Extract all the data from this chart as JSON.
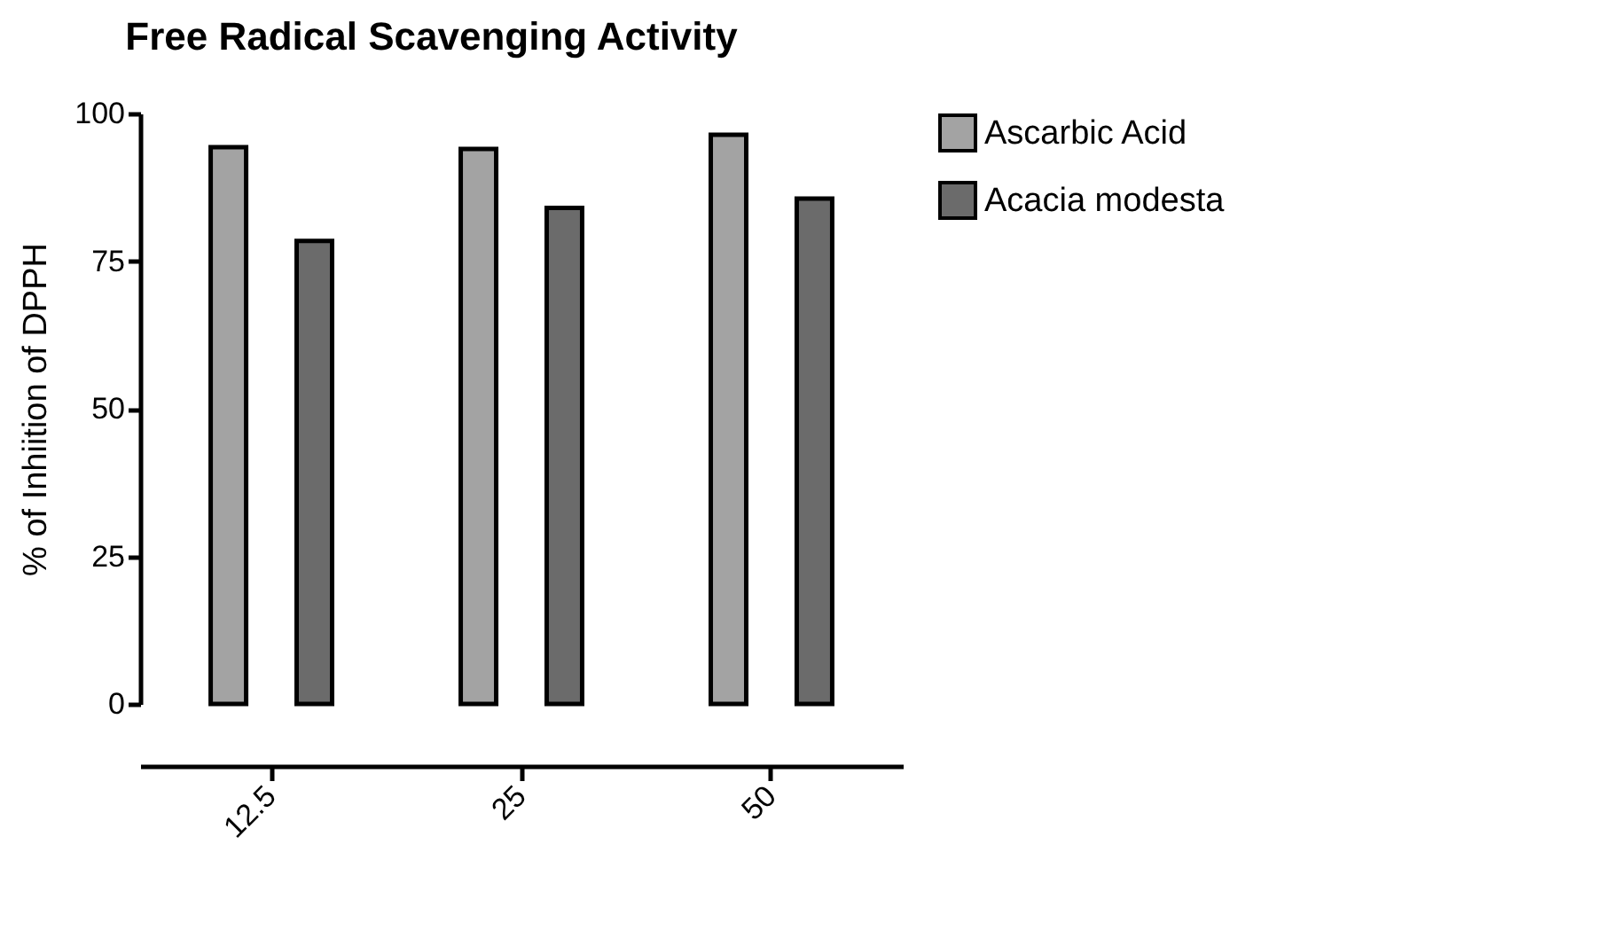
{
  "chart_data": {
    "type": "bar",
    "title": "Free Radical Scavenging Activity",
    "ylabel": "% of Inhiition of DPPH",
    "categories": [
      "12.5",
      "25",
      "50"
    ],
    "series": [
      {
        "name": "Ascarbic Acid",
        "color": "#a3a3a3",
        "values": [
          94.3,
          94,
          96.4
        ]
      },
      {
        "name": "Acacia modesta",
        "color": "#6b6b6b",
        "values": [
          78.4,
          84,
          85.6
        ]
      }
    ],
    "ylim": [
      0,
      100
    ],
    "yticks": [
      0,
      25,
      50,
      75,
      100
    ],
    "grid": false,
    "legend": "top right"
  }
}
